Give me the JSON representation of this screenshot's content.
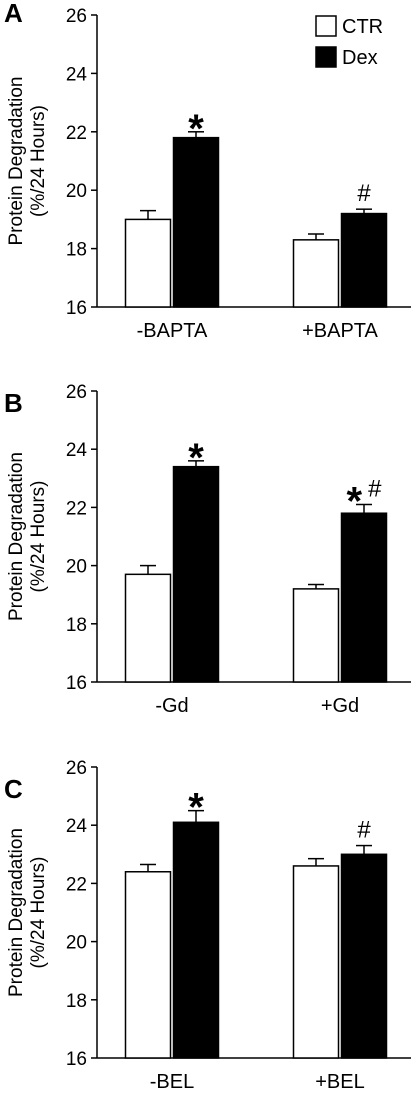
{
  "chart_data": [
    {
      "type": "bar",
      "panel_label": "A",
      "categories": [
        "-BAPTA",
        "+BAPTA"
      ],
      "ylabel": [
        "Protein Degradation",
        "(%/24 Hours)"
      ],
      "ylim": [
        16,
        26
      ],
      "yticks": [
        16,
        18,
        20,
        22,
        24,
        26
      ],
      "legend": {
        "placement": "top-right",
        "entries": [
          "CTR",
          "Dex"
        ]
      },
      "series": [
        {
          "name": "CTR",
          "fill": "#ffffff",
          "values": [
            19.0,
            18.3
          ],
          "errors": [
            0.3,
            0.2
          ]
        },
        {
          "name": "Dex",
          "fill": "#000000",
          "values": [
            21.8,
            19.2
          ],
          "errors": [
            0.2,
            0.15
          ]
        }
      ],
      "annotations": [
        {
          "category": 0,
          "series": 1,
          "text": "*"
        },
        {
          "category": 1,
          "series": 1,
          "text": "#"
        }
      ]
    },
    {
      "type": "bar",
      "panel_label": "B",
      "categories": [
        "-Gd",
        "+Gd"
      ],
      "ylabel": [
        "Protein Degradation",
        "(%/24 Hours)"
      ],
      "ylim": [
        16,
        26
      ],
      "yticks": [
        16,
        18,
        20,
        22,
        24,
        26
      ],
      "series": [
        {
          "name": "CTR",
          "fill": "#ffffff",
          "values": [
            19.7,
            19.2
          ],
          "errors": [
            0.3,
            0.15
          ]
        },
        {
          "name": "Dex",
          "fill": "#000000",
          "values": [
            23.4,
            21.8
          ],
          "errors": [
            0.2,
            0.3
          ]
        }
      ],
      "annotations": [
        {
          "category": 0,
          "series": 1,
          "text": "*"
        },
        {
          "category": 1,
          "series": 1,
          "text": "* #"
        }
      ]
    },
    {
      "type": "bar",
      "panel_label": "C",
      "categories": [
        "-BEL",
        "+BEL"
      ],
      "ylabel": [
        "Protein Degradation",
        "(%/24 Hours)"
      ],
      "ylim": [
        16,
        26
      ],
      "yticks": [
        16,
        18,
        20,
        22,
        24,
        26
      ],
      "series": [
        {
          "name": "CTR",
          "fill": "#ffffff",
          "values": [
            22.4,
            22.6
          ],
          "errors": [
            0.25,
            0.25
          ]
        },
        {
          "name": "Dex",
          "fill": "#000000",
          "values": [
            24.1,
            23.0
          ],
          "errors": [
            0.4,
            0.3
          ]
        }
      ],
      "annotations": [
        {
          "category": 0,
          "series": 1,
          "text": "*"
        },
        {
          "category": 1,
          "series": 1,
          "text": "#"
        }
      ]
    }
  ]
}
